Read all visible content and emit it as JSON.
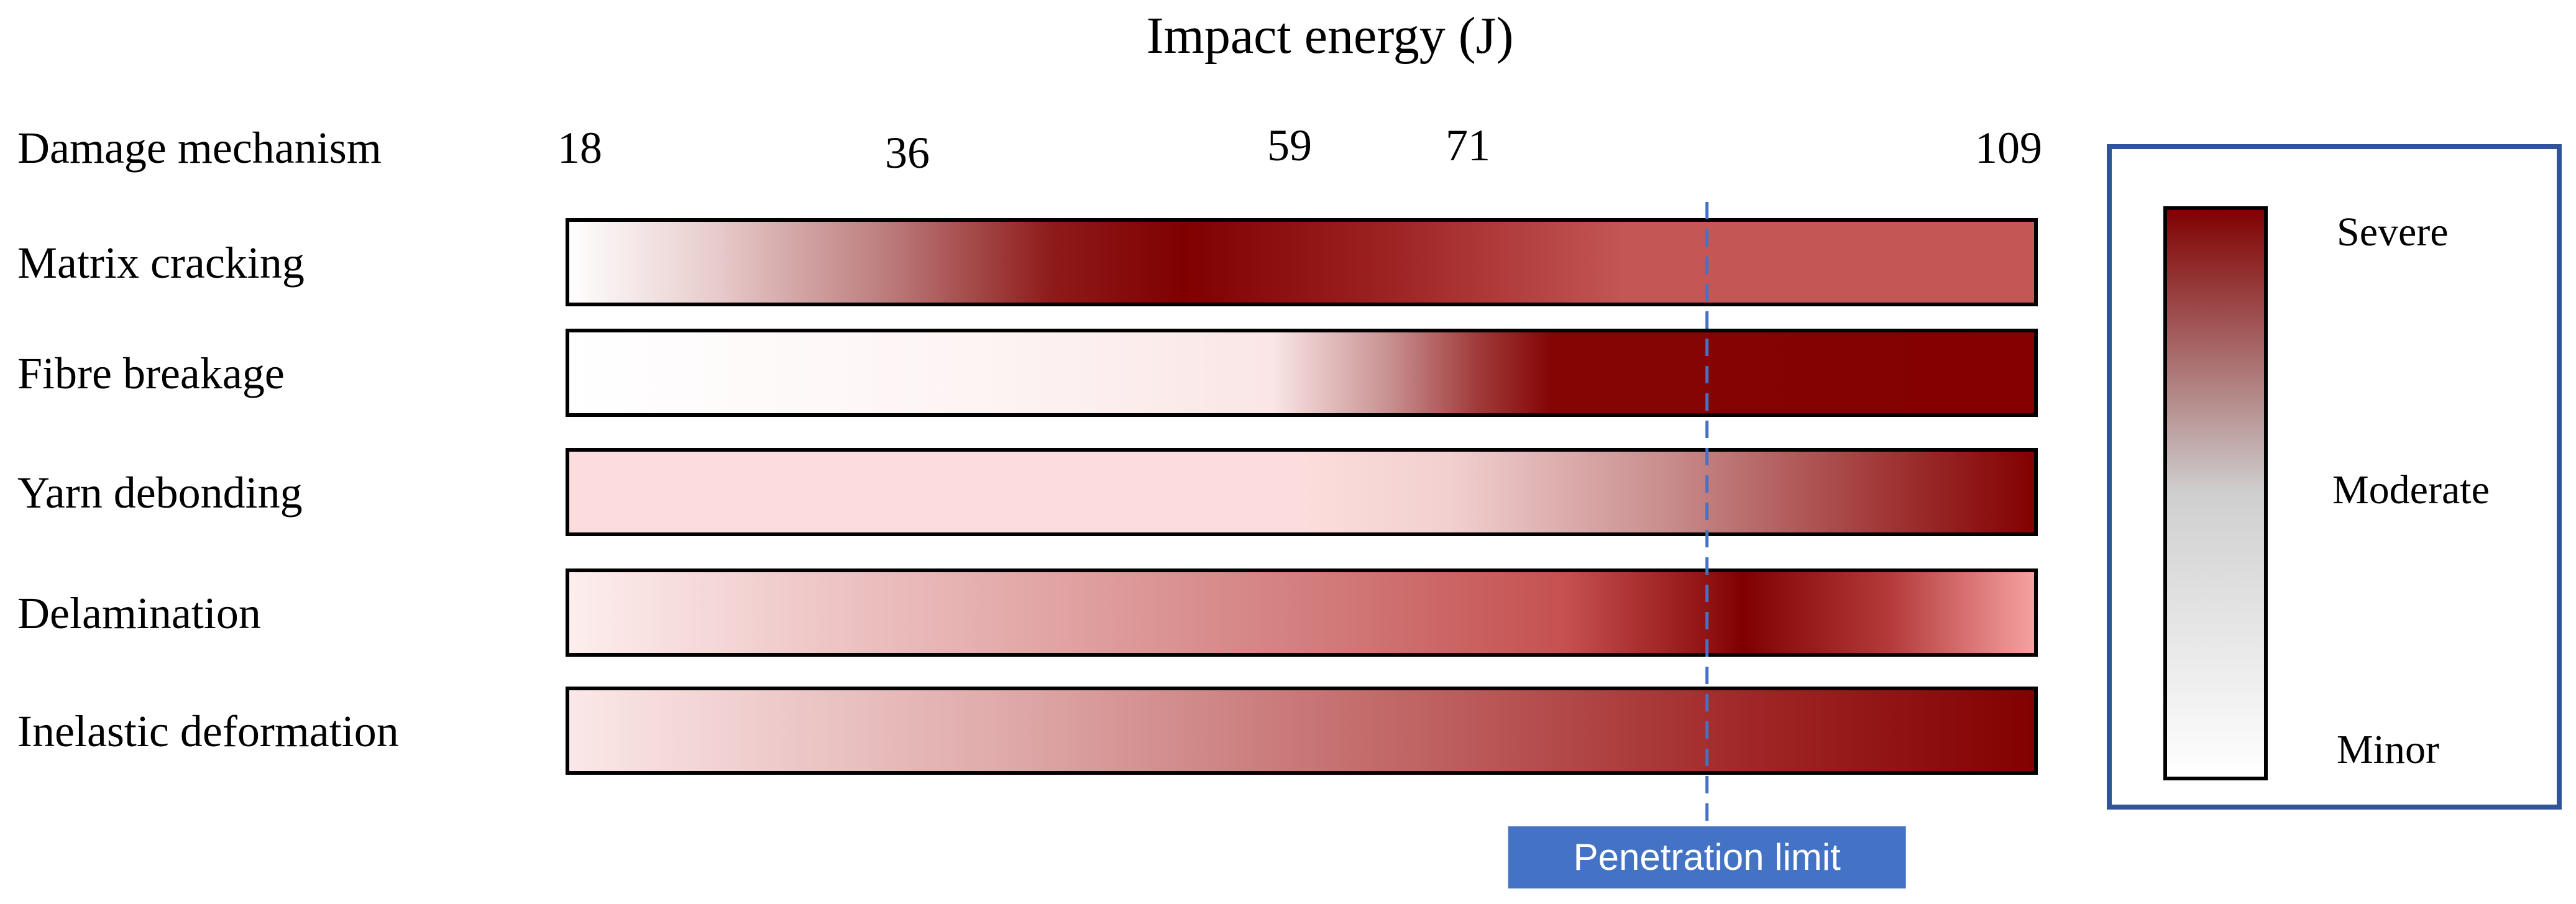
{
  "title": "Impact energy (J)",
  "row_header": "Damage mechanism",
  "energy_ticks": [
    {
      "value": 18,
      "label": "18"
    },
    {
      "value": 36,
      "label": "36"
    },
    {
      "value": 59,
      "label": "59"
    },
    {
      "value": 71,
      "label": "71"
    },
    {
      "value": 109,
      "label": "109"
    }
  ],
  "mechanisms": [
    {
      "label": "Matrix cracking",
      "stops": [
        {
          "at": 0.0,
          "color": "#ffffff"
        },
        {
          "at": 0.1,
          "color": "#e8cccc"
        },
        {
          "at": 0.22,
          "color": "#bb7a7a"
        },
        {
          "at": 0.33,
          "color": "#8e1a1a"
        },
        {
          "at": 0.42,
          "color": "#800000"
        },
        {
          "at": 0.55,
          "color": "#9b2020"
        },
        {
          "at": 0.72,
          "color": "#c45656"
        },
        {
          "at": 1.0,
          "color": "#c45656"
        }
      ]
    },
    {
      "label": "Fibre breakage",
      "stops": [
        {
          "at": 0.0,
          "color": "#ffffff"
        },
        {
          "at": 0.3,
          "color": "#fdf3f3"
        },
        {
          "at": 0.48,
          "color": "#fae6e6"
        },
        {
          "at": 0.56,
          "color": "#c89090"
        },
        {
          "at": 0.62,
          "color": "#a03a3a"
        },
        {
          "at": 0.67,
          "color": "#850505"
        },
        {
          "at": 1.0,
          "color": "#850000"
        }
      ]
    },
    {
      "label": "Yarn debonding",
      "stops": [
        {
          "at": 0.0,
          "color": "#fcdcdc"
        },
        {
          "at": 0.5,
          "color": "#fcdcdc"
        },
        {
          "at": 0.6,
          "color": "#f2d0d0"
        },
        {
          "at": 0.75,
          "color": "#c88c8c"
        },
        {
          "at": 0.9,
          "color": "#a03535"
        },
        {
          "at": 1.0,
          "color": "#820000"
        }
      ]
    },
    {
      "label": "Delamination",
      "stops": [
        {
          "at": 0.0,
          "color": "#fdeeee"
        },
        {
          "at": 0.2,
          "color": "#ecc0c0"
        },
        {
          "at": 0.5,
          "color": "#d37f7f"
        },
        {
          "at": 0.68,
          "color": "#c55050"
        },
        {
          "at": 0.78,
          "color": "#8f1010"
        },
        {
          "at": 0.8,
          "color": "#800000"
        },
        {
          "at": 0.9,
          "color": "#b43a3a"
        },
        {
          "at": 1.0,
          "color": "#f7a2a2"
        }
      ]
    },
    {
      "label": "Inelastic deformation",
      "stops": [
        {
          "at": 0.0,
          "color": "#fbe8e8"
        },
        {
          "at": 0.3,
          "color": "#dfa9a9"
        },
        {
          "at": 0.6,
          "color": "#bd5e5e"
        },
        {
          "at": 0.8,
          "color": "#a12828"
        },
        {
          "at": 1.0,
          "color": "#820000"
        }
      ]
    }
  ],
  "penetration_limit": {
    "label": "Penetration limit",
    "position": 0.776,
    "color": "#4472c4"
  },
  "legend": {
    "labels": [
      {
        "text": "Severe",
        "level": 1.0
      },
      {
        "text": "Moderate",
        "level": 0.5
      },
      {
        "text": "Minor",
        "level": 0.0
      }
    ],
    "colors": {
      "severe": "#800000",
      "moderate": "#cfcfcf",
      "minor": "#ffffff"
    },
    "border_color": "#2f5597"
  }
}
